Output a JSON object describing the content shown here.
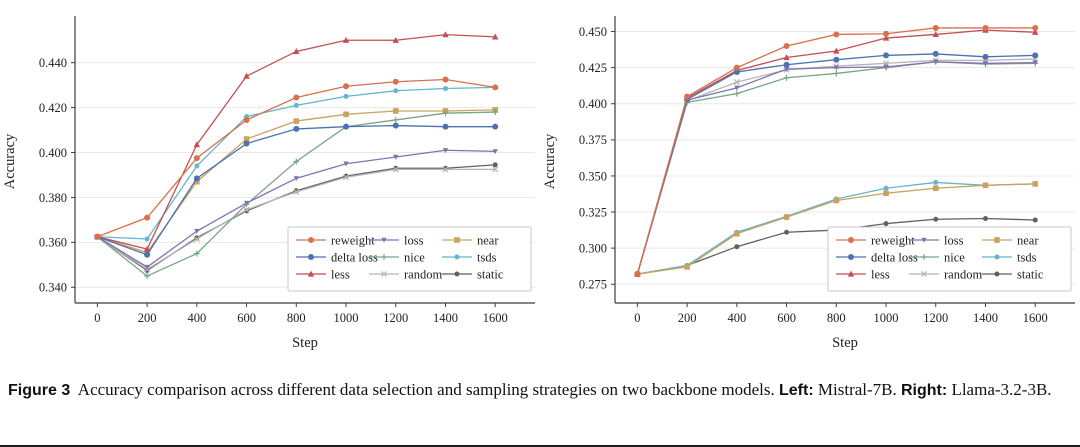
{
  "figure": {
    "caption_tag": "Figure 3",
    "caption_body": "Accuracy comparison across different data selection and sampling strategies on two backbone models.",
    "left_label": "Left:",
    "left_value": "Mistral-7B.",
    "right_label": "Right:",
    "right_value": "Llama-3.2-3B."
  },
  "chart_data": [
    {
      "type": "line",
      "title": "Mistral-7B (left panel)",
      "xlabel": "Step",
      "ylabel": "Accuracy",
      "x": [
        0,
        200,
        400,
        600,
        800,
        1000,
        1200,
        1400,
        1600
      ],
      "xticks": [
        0,
        200,
        400,
        600,
        800,
        1000,
        1200,
        1400,
        1600
      ],
      "xlim": [
        -90,
        1760
      ],
      "ylim": [
        0.333,
        0.459
      ],
      "yticks": [
        0.34,
        0.36,
        0.38,
        0.4,
        0.42,
        0.44
      ],
      "ytick_decimals": 3,
      "grid": "horizontal",
      "legend_position": "lower right",
      "series": [
        {
          "name": "reweight",
          "color": "#D9704C",
          "marker": "circle",
          "values": [
            0.3625,
            0.371,
            0.3975,
            0.4145,
            0.4245,
            0.4295,
            0.4315,
            0.4325,
            0.429
          ]
        },
        {
          "name": "delta loss",
          "color": "#4C72B0",
          "marker": "circle",
          "values": [
            0.3625,
            0.3545,
            0.3885,
            0.404,
            0.4105,
            0.4115,
            0.412,
            0.4115,
            0.4115
          ]
        },
        {
          "name": "less",
          "color": "#C44E52",
          "marker": "triangle-up",
          "values": [
            0.3625,
            0.357,
            0.4035,
            0.434,
            0.445,
            0.45,
            0.45,
            0.4525,
            0.4515
          ]
        },
        {
          "name": "loss",
          "color": "#8172B2",
          "marker": "triangle-down",
          "values": [
            0.3625,
            0.349,
            0.365,
            0.3775,
            0.3885,
            0.395,
            0.398,
            0.401,
            0.4005
          ]
        },
        {
          "name": "nice",
          "color": "#77A685",
          "marker": "plus",
          "values": [
            0.3625,
            0.345,
            0.355,
            0.377,
            0.396,
            0.4115,
            0.4145,
            0.4175,
            0.418
          ]
        },
        {
          "name": "random",
          "color": "#B5B5B5",
          "marker": "x",
          "values": [
            0.3625,
            0.348,
            0.3615,
            0.3745,
            0.3825,
            0.389,
            0.3925,
            0.3925,
            0.3925
          ]
        },
        {
          "name": "near",
          "color": "#C9A25E",
          "marker": "square",
          "values": [
            0.3625,
            0.3555,
            0.387,
            0.406,
            0.414,
            0.417,
            0.4185,
            0.4185,
            0.419
          ]
        },
        {
          "name": "tsds",
          "color": "#64B5CD",
          "marker": "circle-sm",
          "values": [
            0.3625,
            0.3615,
            0.394,
            0.416,
            0.421,
            0.425,
            0.4275,
            0.4285,
            0.429
          ]
        },
        {
          "name": "static",
          "color": "#606060",
          "marker": "circle-sm",
          "values": [
            0.3625,
            0.3475,
            0.362,
            0.374,
            0.383,
            0.3895,
            0.393,
            0.393,
            0.3945
          ]
        }
      ]
    },
    {
      "type": "line",
      "title": "Llama-3.2-3B (right panel)",
      "xlabel": "Step",
      "ylabel": "Accuracy",
      "x": [
        0,
        200,
        400,
        600,
        800,
        1000,
        1200,
        1400,
        1600
      ],
      "xticks": [
        0,
        200,
        400,
        600,
        800,
        1000,
        1200,
        1400,
        1600
      ],
      "xlim": [
        -90,
        1760
      ],
      "ylim": [
        0.262,
        0.458
      ],
      "yticks": [
        0.275,
        0.3,
        0.325,
        0.35,
        0.375,
        0.4,
        0.425,
        0.45
      ],
      "ytick_decimals": 3,
      "grid": "horizontal",
      "legend_position": "lower right",
      "series": [
        {
          "name": "reweight",
          "color": "#D9704C",
          "marker": "circle",
          "values": [
            0.282,
            0.405,
            0.425,
            0.44,
            0.448,
            0.4485,
            0.4525,
            0.4525,
            0.4525
          ]
        },
        {
          "name": "delta loss",
          "color": "#4C72B0",
          "marker": "circle",
          "values": [
            0.282,
            0.403,
            0.422,
            0.427,
            0.4305,
            0.4335,
            0.4345,
            0.4325,
            0.4335
          ]
        },
        {
          "name": "less",
          "color": "#C44E52",
          "marker": "triangle-up",
          "values": [
            0.282,
            0.404,
            0.423,
            0.432,
            0.4365,
            0.4455,
            0.448,
            0.451,
            0.4495
          ]
        },
        {
          "name": "loss",
          "color": "#8172B2",
          "marker": "triangle-down",
          "values": [
            0.282,
            0.4025,
            0.411,
            0.424,
            0.425,
            0.4255,
            0.429,
            0.428,
            0.4285
          ]
        },
        {
          "name": "nice",
          "color": "#77A685",
          "marker": "plus",
          "values": [
            0.282,
            0.401,
            0.407,
            0.418,
            0.421,
            0.425,
            0.429,
            0.4275,
            0.428
          ]
        },
        {
          "name": "random",
          "color": "#B5B5B5",
          "marker": "x",
          "values": [
            0.282,
            0.402,
            0.415,
            0.4235,
            0.426,
            0.428,
            0.43,
            0.43,
            0.431
          ]
        },
        {
          "name": "near",
          "color": "#C9A25E",
          "marker": "square",
          "values": [
            0.282,
            0.287,
            0.31,
            0.3215,
            0.333,
            0.338,
            0.3415,
            0.3435,
            0.3445
          ]
        },
        {
          "name": "tsds",
          "color": "#64B5CD",
          "marker": "circle-sm",
          "values": [
            0.282,
            0.288,
            0.311,
            0.322,
            0.334,
            0.3415,
            0.3455,
            0.3435,
            0.3445
          ]
        },
        {
          "name": "static",
          "color": "#606060",
          "marker": "circle-sm",
          "values": [
            0.282,
            0.288,
            0.301,
            0.311,
            0.3125,
            0.317,
            0.32,
            0.3205,
            0.3195
          ]
        }
      ]
    }
  ]
}
